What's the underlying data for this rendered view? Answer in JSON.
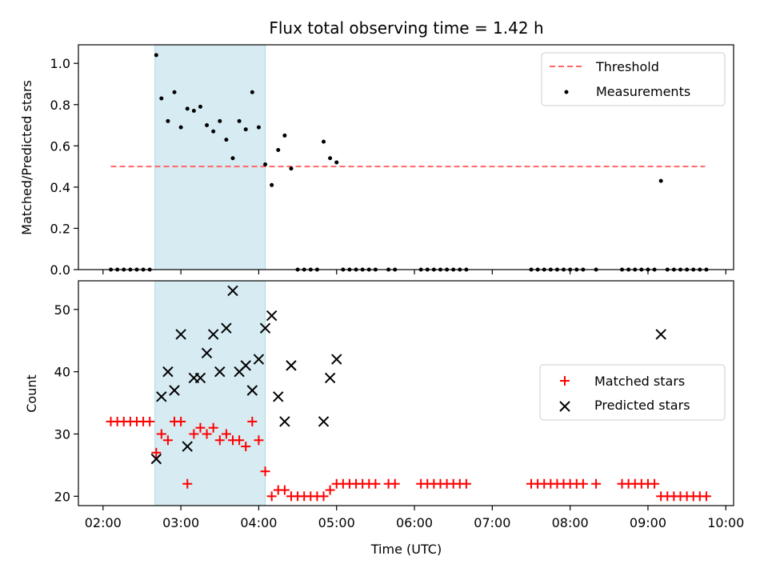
{
  "chart_data": [
    {
      "type": "scatter",
      "title": "Flux total observing time = 1.42 h",
      "xlabel": "",
      "ylabel": "Matched/Predicted stars",
      "xlim": [
        "01:41",
        "10:06"
      ],
      "ylim": [
        0,
        1.09
      ],
      "yticks": [
        "0.0",
        "0.2",
        "0.4",
        "0.6",
        "0.8",
        "1.0"
      ],
      "ytick_values": [
        0,
        0.2,
        0.4,
        0.6,
        0.8,
        1.0
      ],
      "grid": false,
      "legend": "top-right",
      "highlight_span": {
        "x0": "02:40",
        "x1": "04:05",
        "color": "#add8e6"
      },
      "series": [
        {
          "name": "Threshold",
          "kind": "line",
          "style": "dashed",
          "color": "#ff6666",
          "x": [
            "02:06",
            "09:44"
          ],
          "y": [
            0.5,
            0.5
          ]
        },
        {
          "name": "Measurements",
          "kind": "scatter",
          "color": "#000000",
          "x": [
            "02:06",
            "02:11",
            "02:16",
            "02:21",
            "02:26",
            "02:31",
            "02:36",
            "02:41",
            "02:45",
            "02:50",
            "02:55",
            "03:00",
            "03:05",
            "03:10",
            "03:15",
            "03:20",
            "03:25",
            "03:30",
            "03:35",
            "03:40",
            "03:45",
            "03:50",
            "03:55",
            "04:00",
            "04:05",
            "04:10",
            "04:15",
            "04:20",
            "04:25",
            "04:30",
            "04:35",
            "04:40",
            "04:45",
            "04:50",
            "04:55",
            "05:00",
            "05:05",
            "05:10",
            "05:15",
            "05:20",
            "05:25",
            "05:30",
            "05:40",
            "05:45",
            "06:05",
            "06:10",
            "06:15",
            "06:20",
            "06:25",
            "06:30",
            "06:35",
            "06:40",
            "07:30",
            "07:35",
            "07:40",
            "07:45",
            "07:50",
            "07:55",
            "08:00",
            "08:05",
            "08:10",
            "08:20",
            "08:40",
            "08:45",
            "08:50",
            "08:55",
            "09:00",
            "09:05",
            "09:10",
            "09:15",
            "09:20",
            "09:25",
            "09:30",
            "09:35",
            "09:40",
            "09:45"
          ],
          "y": [
            0,
            0,
            0,
            0,
            0,
            0,
            0,
            1.04,
            0.83,
            0.72,
            0.86,
            0.69,
            0.78,
            0.77,
            0.79,
            0.7,
            0.67,
            0.72,
            0.63,
            0.54,
            0.72,
            0.68,
            0.86,
            0.69,
            0.51,
            0.41,
            0.58,
            0.65,
            0.49,
            0,
            0,
            0,
            0,
            0.62,
            0.54,
            0.52,
            0,
            0,
            0,
            0,
            0,
            0,
            0,
            0,
            0,
            0,
            0,
            0,
            0,
            0,
            0,
            0,
            0,
            0,
            0,
            0,
            0,
            0,
            0,
            0,
            0,
            0,
            0,
            0,
            0,
            0,
            0,
            0,
            0.43,
            0,
            0,
            0,
            0,
            0,
            0,
            0
          ]
        }
      ]
    },
    {
      "type": "scatter",
      "title": "",
      "xlabel": "Time (UTC)",
      "ylabel": "Count",
      "xlim": [
        "01:41",
        "10:06"
      ],
      "ylim": [
        18.5,
        54.6
      ],
      "yticks": [
        "20",
        "30",
        "40",
        "50"
      ],
      "ytick_values": [
        20,
        30,
        40,
        50
      ],
      "xticks": [
        "02:00",
        "03:00",
        "04:00",
        "05:00",
        "06:00",
        "07:00",
        "08:00",
        "09:00",
        "10:00"
      ],
      "grid": false,
      "legend": "center-right",
      "highlight_span": {
        "x0": "02:40",
        "x1": "04:05",
        "color": "#add8e6"
      },
      "series": [
        {
          "name": "Matched stars",
          "kind": "scatter",
          "marker": "plus",
          "color": "#ff0000",
          "x": [
            "02:06",
            "02:11",
            "02:16",
            "02:21",
            "02:26",
            "02:31",
            "02:36",
            "02:41",
            "02:45",
            "02:50",
            "02:55",
            "03:00",
            "03:05",
            "03:10",
            "03:15",
            "03:20",
            "03:25",
            "03:30",
            "03:35",
            "03:40",
            "03:45",
            "03:50",
            "03:55",
            "04:00",
            "04:05",
            "04:10",
            "04:15",
            "04:20",
            "04:25",
            "04:30",
            "04:35",
            "04:40",
            "04:45",
            "04:50",
            "04:55",
            "05:00",
            "05:05",
            "05:10",
            "05:15",
            "05:20",
            "05:25",
            "05:30",
            "05:40",
            "05:45",
            "06:05",
            "06:10",
            "06:15",
            "06:20",
            "06:25",
            "06:30",
            "06:35",
            "06:40",
            "07:30",
            "07:35",
            "07:40",
            "07:45",
            "07:50",
            "07:55",
            "08:00",
            "08:05",
            "08:10",
            "08:20",
            "08:40",
            "08:45",
            "08:50",
            "08:55",
            "09:00",
            "09:05",
            "09:10",
            "09:15",
            "09:20",
            "09:25",
            "09:30",
            "09:35",
            "09:40",
            "09:45"
          ],
          "y": [
            32,
            32,
            32,
            32,
            32,
            32,
            32,
            27,
            30,
            29,
            32,
            32,
            22,
            30,
            31,
            30,
            31,
            29,
            30,
            29,
            29,
            28,
            32,
            29,
            24,
            20,
            21,
            21,
            20,
            20,
            20,
            20,
            20,
            20,
            21,
            22,
            22,
            22,
            22,
            22,
            22,
            22,
            22,
            22,
            22,
            22,
            22,
            22,
            22,
            22,
            22,
            22,
            22,
            22,
            22,
            22,
            22,
            22,
            22,
            22,
            22,
            22,
            22,
            22,
            22,
            22,
            22,
            22,
            20,
            20,
            20,
            20,
            20,
            20,
            20,
            20
          ]
        },
        {
          "name": "Predicted stars",
          "kind": "scatter",
          "marker": "x",
          "color": "#000000",
          "x": [
            "02:41",
            "02:45",
            "02:50",
            "02:55",
            "03:00",
            "03:05",
            "03:10",
            "03:15",
            "03:20",
            "03:25",
            "03:30",
            "03:35",
            "03:40",
            "03:45",
            "03:50",
            "03:55",
            "04:00",
            "04:05",
            "04:10",
            "04:15",
            "04:20",
            "04:25",
            "04:50",
            "04:55",
            "05:00",
            "09:10"
          ],
          "y": [
            26,
            36,
            40,
            37,
            46,
            28,
            39,
            39,
            43,
            46,
            40,
            47,
            53,
            40,
            41,
            37,
            42,
            47,
            49,
            36,
            32,
            41,
            32,
            39,
            42,
            46
          ]
        }
      ]
    }
  ]
}
